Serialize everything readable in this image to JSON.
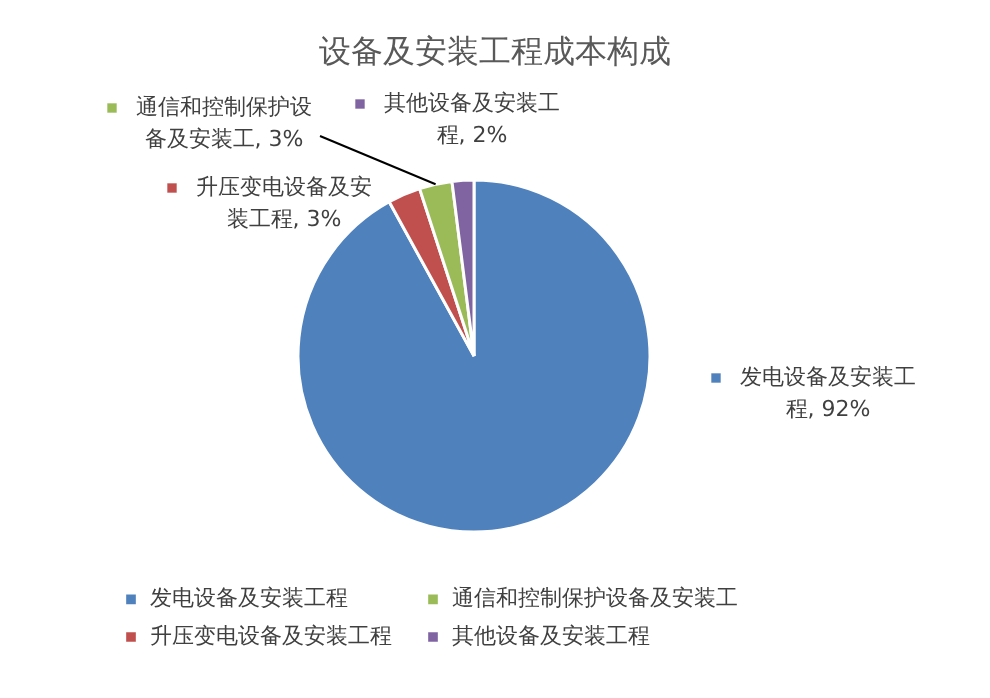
{
  "chart_data": {
    "type": "pie",
    "title": "设备及安装工程成本构成",
    "categories": [
      "发电设备及安装工程",
      "升压变电设备及安装工程",
      "通信和控制保护设备及安装工",
      "其他设备及安装工程"
    ],
    "values": [
      92,
      3,
      3,
      2
    ],
    "value_labels": [
      "发电设备及安装工程, 92%",
      "升压变电设备及安装工程, 3%",
      "通信和控制保护设备及安装工, 3%",
      "其他设备及安装工程, 2%"
    ],
    "colors": [
      "#4f81bd",
      "#c0504d",
      "#9bbb59",
      "#8064a2"
    ],
    "legend": "bottom"
  }
}
